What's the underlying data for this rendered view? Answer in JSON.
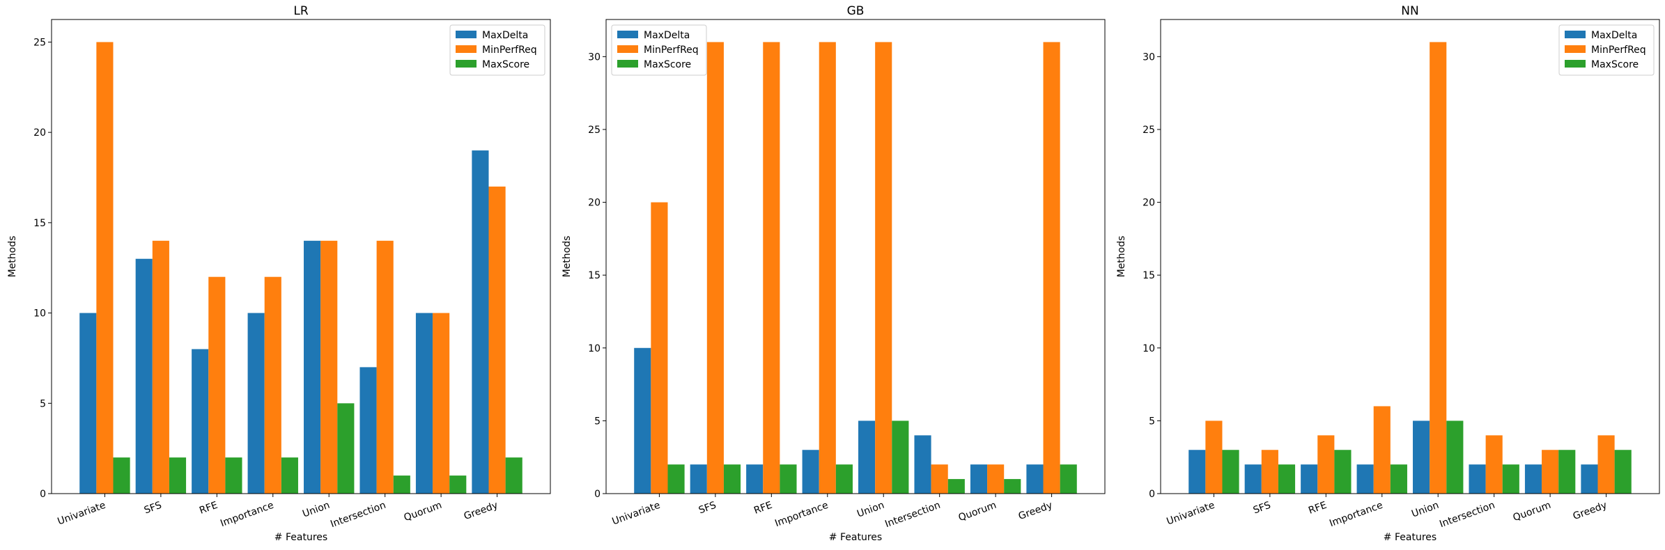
{
  "chart_data": [
    {
      "type": "bar",
      "title": "LR",
      "xlabel": "# Features",
      "ylabel": "Methods",
      "categories": [
        "Univariate",
        "SFS",
        "RFE",
        "Importance",
        "Union",
        "Intersection",
        "Quorum",
        "Greedy"
      ],
      "ylim": [
        0,
        26.25
      ],
      "yticks": [
        0,
        5,
        10,
        15,
        20,
        25
      ],
      "legend_position": "top-right",
      "series": [
        {
          "name": "MaxDelta",
          "color": "#1f77b4",
          "values": [
            10,
            13,
            8,
            10,
            14,
            7,
            10,
            19
          ]
        },
        {
          "name": "MinPerfReq",
          "color": "#ff7f0e",
          "values": [
            25,
            14,
            12,
            12,
            14,
            14,
            10,
            17
          ]
        },
        {
          "name": "MaxScore",
          "color": "#2ca02c",
          "values": [
            2,
            2,
            2,
            2,
            5,
            1,
            1,
            2
          ]
        }
      ]
    },
    {
      "type": "bar",
      "title": "GB",
      "xlabel": "# Features",
      "ylabel": "Methods",
      "categories": [
        "Univariate",
        "SFS",
        "RFE",
        "Importance",
        "Union",
        "Intersection",
        "Quorum",
        "Greedy"
      ],
      "ylim": [
        0,
        32.55
      ],
      "yticks": [
        0,
        5,
        10,
        15,
        20,
        25,
        30
      ],
      "legend_position": "top-left",
      "series": [
        {
          "name": "MaxDelta",
          "color": "#1f77b4",
          "values": [
            10,
            2,
            2,
            3,
            5,
            4,
            2,
            2
          ]
        },
        {
          "name": "MinPerfReq",
          "color": "#ff7f0e",
          "values": [
            20,
            31,
            31,
            31,
            31,
            2,
            2,
            31
          ]
        },
        {
          "name": "MaxScore",
          "color": "#2ca02c",
          "values": [
            2,
            2,
            2,
            2,
            5,
            1,
            1,
            2
          ]
        }
      ]
    },
    {
      "type": "bar",
      "title": "NN",
      "xlabel": "# Features",
      "ylabel": "Methods",
      "categories": [
        "Univariate",
        "SFS",
        "RFE",
        "Importance",
        "Union",
        "Intersection",
        "Quorum",
        "Greedy"
      ],
      "ylim": [
        0,
        32.55
      ],
      "yticks": [
        0,
        5,
        10,
        15,
        20,
        25,
        30
      ],
      "legend_position": "top-right",
      "series": [
        {
          "name": "MaxDelta",
          "color": "#1f77b4",
          "values": [
            3,
            2,
            2,
            2,
            5,
            2,
            2,
            2
          ]
        },
        {
          "name": "MinPerfReq",
          "color": "#ff7f0e",
          "values": [
            5,
            3,
            4,
            6,
            31,
            4,
            3,
            4
          ]
        },
        {
          "name": "MaxScore",
          "color": "#2ca02c",
          "values": [
            3,
            2,
            3,
            2,
            5,
            2,
            3,
            3
          ]
        }
      ]
    }
  ]
}
